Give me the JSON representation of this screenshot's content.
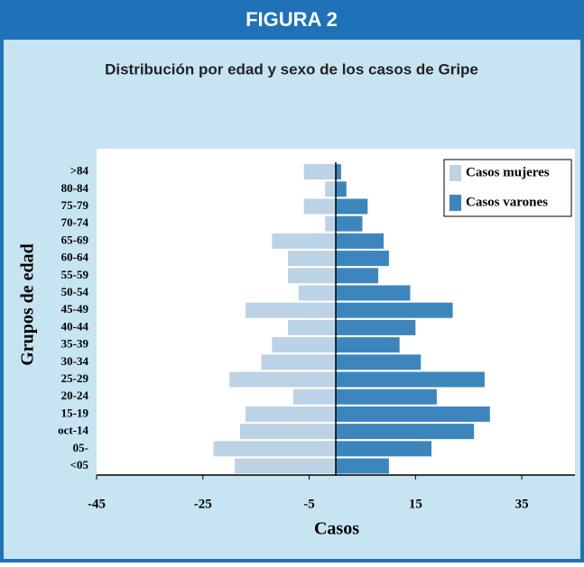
{
  "figure_label": "FIGURA 2",
  "chart_data": {
    "type": "pyramid",
    "title": "Distribución por edad y sexo de los casos de Gripe",
    "x_label": "Casos",
    "y_label": "Grupos de edad",
    "categories": [
      "<05",
      "05-",
      "oct-14",
      "15-19",
      "20-24",
      "25-29",
      "30-34",
      "35-39",
      "40-44",
      "45-49",
      "50-54",
      "55-59",
      "60-64",
      "65-69",
      "70-74",
      "75-79",
      "80-84",
      ">84"
    ],
    "series": [
      {
        "name": "Casos mujeres",
        "color": "#bcd3e6",
        "values": [
          -19,
          -23,
          -18,
          -17,
          -8,
          -20,
          -14,
          -12,
          -9,
          -17,
          -7,
          -9,
          -9,
          -12,
          -2,
          -6,
          -2,
          -6
        ]
      },
      {
        "name": "Casos varones",
        "color": "#3d86bd",
        "values": [
          10,
          18,
          26,
          29,
          19,
          28,
          16,
          12,
          15,
          22,
          14,
          8,
          10,
          9,
          5,
          6,
          2,
          1
        ]
      }
    ],
    "xlim": [
      -45,
      45
    ],
    "xticks": [
      -45,
      -25,
      -5,
      15,
      35
    ],
    "legend": "top-right"
  }
}
